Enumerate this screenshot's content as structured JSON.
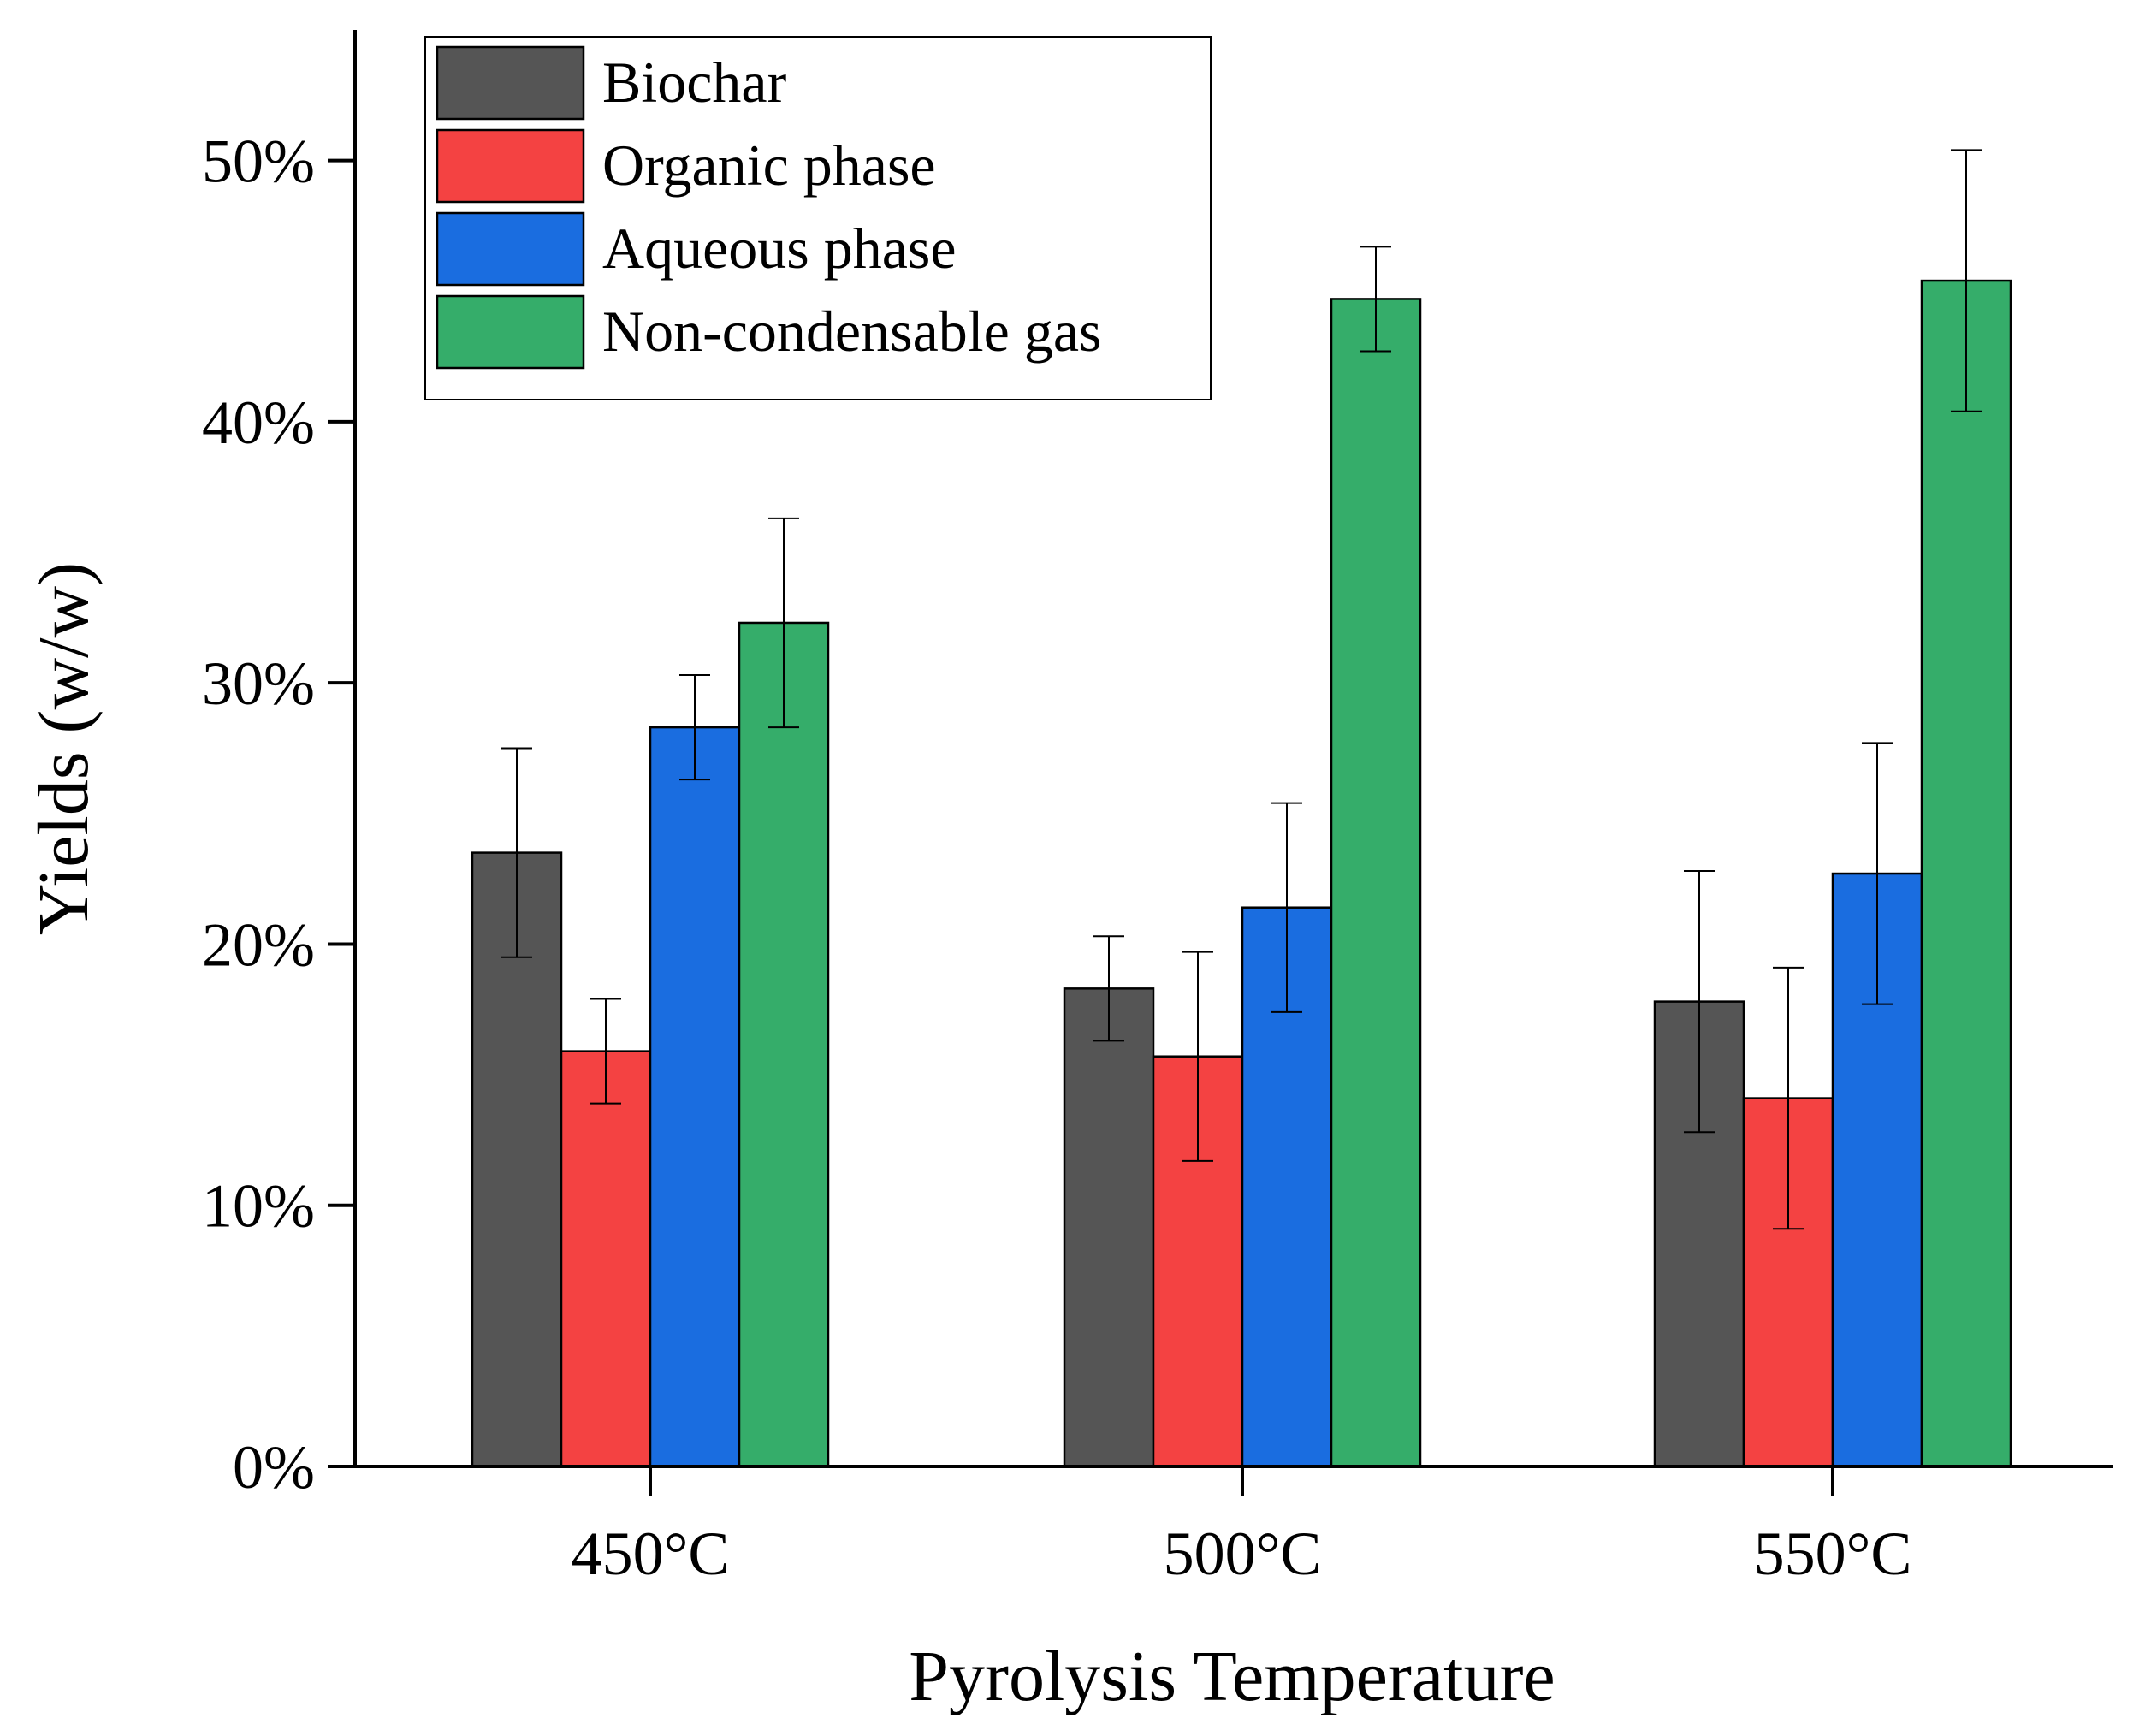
{
  "chart_data": {
    "type": "bar",
    "title": "",
    "xlabel": "Pyrolysis Temperature",
    "ylabel": "Yields (w/w)",
    "categories": [
      "450°C",
      "500°C",
      "550°C"
    ],
    "ylim": [
      0,
      55
    ],
    "yticks": [
      0,
      10,
      20,
      30,
      40,
      50
    ],
    "ytick_labels": [
      "0%",
      "10%",
      "20%",
      "30%",
      "40%",
      "50%"
    ],
    "legend_position": "top-left",
    "grid": false,
    "series": [
      {
        "name": "Biochar",
        "color": "#555555",
        "values": [
          23.5,
          18.3,
          17.8
        ],
        "errors": [
          4.0,
          2.0,
          5.0
        ]
      },
      {
        "name": "Organic phase",
        "color": "#f44242",
        "values": [
          15.9,
          15.7,
          14.1
        ],
        "errors": [
          2.0,
          4.0,
          5.0
        ]
      },
      {
        "name": "Aqueous phase",
        "color": "#1a6de0",
        "values": [
          28.3,
          21.4,
          22.7
        ],
        "errors": [
          2.0,
          4.0,
          5.0
        ]
      },
      {
        "name": "Non-condensable gas",
        "color": "#35ad6a",
        "values": [
          32.3,
          44.7,
          45.4
        ],
        "errors": [
          4.0,
          2.0,
          5.0
        ]
      }
    ]
  }
}
